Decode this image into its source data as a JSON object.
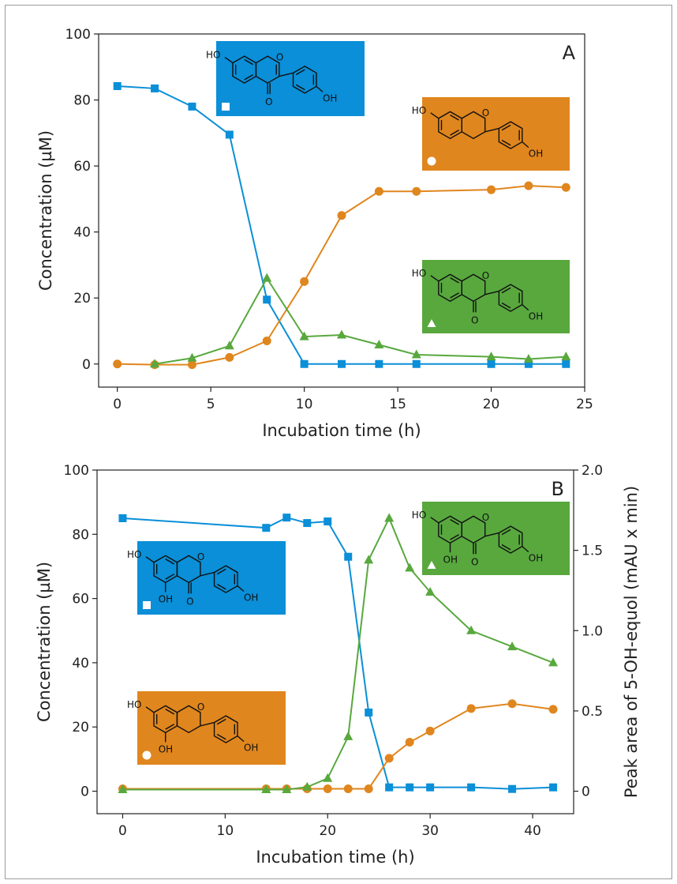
{
  "colors": {
    "blue": "#0a8fd8",
    "orange": "#e0861e",
    "green": "#58a83e",
    "axis": "#222222"
  },
  "chart_data": [
    {
      "type": "line",
      "panel_label": "A",
      "xlabel": "Incubation time (h)",
      "ylabel": "Concentration (µM)",
      "xlim": [
        -1,
        25
      ],
      "ylim": [
        -7,
        100
      ],
      "xticks": [
        0,
        5,
        10,
        15,
        20,
        25
      ],
      "yticks": [
        0,
        20,
        40,
        60,
        80,
        100
      ],
      "grid": false,
      "series": [
        {
          "color": "blue",
          "marker": "square",
          "x": [
            0,
            2,
            4,
            6,
            8,
            10,
            12,
            14,
            16,
            20,
            22,
            24
          ],
          "y": [
            84.2,
            83.5,
            78,
            69.5,
            19.5,
            0,
            0,
            0,
            0,
            0,
            0,
            0
          ]
        },
        {
          "color": "orange",
          "marker": "circle",
          "x": [
            0,
            2,
            4,
            6,
            8,
            10,
            12,
            14,
            16,
            20,
            22,
            24
          ],
          "y": [
            0,
            -0.2,
            -0.2,
            2,
            7,
            25,
            45,
            52.3,
            52.3,
            52.8,
            54,
            53.5
          ]
        },
        {
          "color": "green",
          "marker": "triangle",
          "x": [
            2,
            4,
            6,
            8,
            10,
            12,
            14,
            16,
            20,
            22,
            24
          ],
          "y": [
            0,
            1.8,
            5.5,
            26,
            8.3,
            8.8,
            5.8,
            2.8,
            2.2,
            1.5,
            2.2
          ]
        }
      ],
      "structures": [
        {
          "compound": "daidzein",
          "color": "blue",
          "marker": "square"
        },
        {
          "compound": "equol",
          "color": "orange",
          "marker": "circle"
        },
        {
          "compound": "dihydrodaidzein",
          "color": "green",
          "marker": "triangle"
        }
      ]
    },
    {
      "type": "line",
      "panel_label": "B",
      "xlabel": "Incubation time (h)",
      "ylabel": "Concentration (µM)",
      "y2label": "Peak area of 5-OH-equol (mAU x min)",
      "xlim": [
        -2.5,
        44
      ],
      "ylim": [
        -7,
        100
      ],
      "y2lim": [
        -0.14,
        2.0
      ],
      "xticks": [
        0,
        10,
        20,
        30,
        40
      ],
      "yticks": [
        0,
        20,
        40,
        60,
        80,
        100
      ],
      "y2ticks": [
        "0",
        "0.5",
        "1.0",
        "1.5",
        "2.0"
      ],
      "grid": false,
      "series": [
        {
          "color": "blue",
          "marker": "square",
          "axis": "left",
          "x": [
            0,
            14,
            16,
            18,
            20,
            22,
            24,
            26,
            28,
            30,
            34,
            38,
            42
          ],
          "y": [
            85,
            82,
            85.2,
            83.5,
            84,
            73,
            24.5,
            1.2,
            1.2,
            1.2,
            1.2,
            0.7,
            1.2
          ]
        },
        {
          "color": "orange",
          "marker": "circle",
          "axis": "right",
          "x": [
            0,
            14,
            16,
            18,
            20,
            22,
            24,
            26,
            28,
            30,
            34,
            38,
            42
          ],
          "y": [
            0.015,
            0.015,
            0.015,
            0.015,
            0.015,
            0.015,
            0.015,
            0.205,
            0.305,
            0.375,
            0.515,
            0.545,
            0.51
          ]
        },
        {
          "color": "green",
          "marker": "triangle",
          "axis": "left",
          "x": [
            0,
            14,
            16,
            18,
            20,
            22,
            24,
            26,
            28,
            30,
            34,
            38,
            42
          ],
          "y": [
            0.5,
            0.5,
            0.5,
            1.3,
            4,
            17,
            72,
            85,
            69.5,
            62,
            50,
            45,
            40
          ]
        }
      ],
      "structures": [
        {
          "compound": "5-hydroxy-dihydrodaidzein",
          "color": "blue",
          "marker": "square"
        },
        {
          "compound": "5-hydroxy-equol",
          "color": "orange",
          "marker": "circle"
        },
        {
          "compound": "genistein-type isoflavanone",
          "color": "green",
          "marker": "triangle"
        }
      ]
    }
  ],
  "structure_atoms": {
    "ho": "HO",
    "oh": "OH",
    "o": "O"
  }
}
